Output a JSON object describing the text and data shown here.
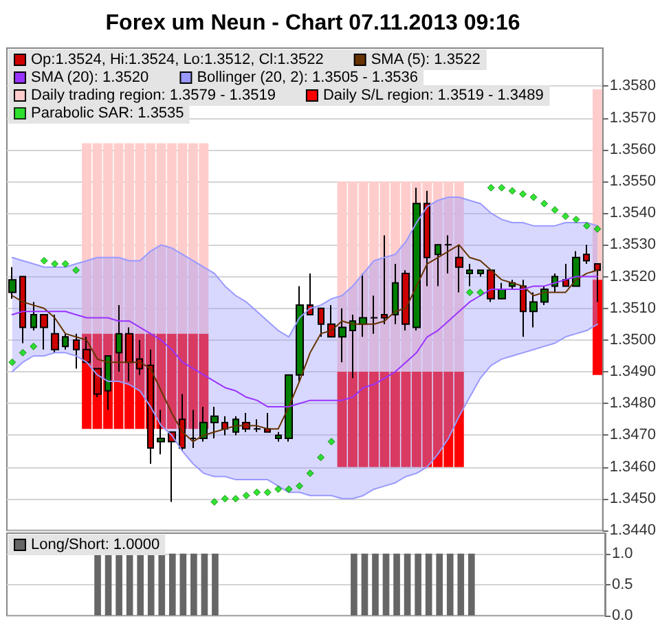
{
  "chart_data": [
    {
      "type": "candlestick",
      "title": "Forex um Neun - Chart 07.11.2013 09:16",
      "categories": [
        null,
        null,
        null,
        null,
        null,
        null,
        null,
        null,
        null,
        null,
        null,
        null,
        null,
        null,
        null,
        null,
        null,
        null,
        null,
        null,
        null,
        null,
        null,
        null,
        null,
        null,
        null,
        null,
        null,
        null,
        null,
        null,
        null,
        null,
        null,
        null,
        null,
        null,
        null,
        null,
        null,
        null,
        null,
        null,
        null,
        null,
        null,
        null,
        null,
        null,
        null,
        null,
        null,
        null,
        null,
        null
      ],
      "ylim": [
        1.344,
        1.3592
      ],
      "yticks": [
        {
          "value": 1.344,
          "label": "1.3440"
        },
        {
          "value": 1.345,
          "label": "1.3450"
        },
        {
          "value": 1.346,
          "label": "1.3460"
        },
        {
          "value": 1.347,
          "label": "1.3470"
        },
        {
          "value": 1.348,
          "label": "1.3480"
        },
        {
          "value": 1.349,
          "label": "1.3490"
        },
        {
          "value": 1.35,
          "label": "1.3500"
        },
        {
          "value": 1.351,
          "label": "1.3510"
        },
        {
          "value": 1.352,
          "label": "1.3520"
        },
        {
          "value": 1.353,
          "label": "1.3530"
        },
        {
          "value": 1.354,
          "label": "1.3540"
        },
        {
          "value": 1.355,
          "label": "1.3550"
        },
        {
          "value": 1.356,
          "label": "1.3560"
        },
        {
          "value": 1.357,
          "label": "1.3570"
        },
        {
          "value": 1.358,
          "label": "1.3580"
        }
      ],
      "grid": "y",
      "legend": "top left",
      "tick_labels": "y",
      "series": [
        {
          "name": "Op:1.3524, Hi:1.3524, Lo:1.3512, Cl:1.3522",
          "color": "#cc0000",
          "colors": [
            "#008000",
            "#cc0000",
            "#008000",
            "#cc0000",
            "#cc0000",
            "#008000",
            "#cc0000",
            "#cc0000",
            "#cc0000",
            "#008000",
            "#008000",
            "#cc0000",
            "#cc0000",
            "#cc0000",
            "#008000",
            "#cc0000",
            "#cc0000",
            "#000000",
            "#008000",
            "#008000",
            "#cc0000",
            "#008000",
            "#cc0000",
            "#000000",
            "#cc0000",
            "#008000",
            "#008000",
            "#008000",
            "#cc0000",
            "#cc0000",
            "#cc0000",
            "#008000",
            "#008000",
            "#008000",
            "#000000",
            "#cc0000",
            "#008000",
            "#cc0000",
            "#008000",
            "#cc0000",
            "#008000",
            "#000000",
            "#cc0000",
            "#008000",
            "#008000",
            "#cc0000",
            "#008000",
            "#008000",
            "#cc0000",
            "#008000",
            "#008000",
            "#008000",
            "#cc0000",
            "#008000",
            "#cc0000",
            "#cc0000"
          ],
          "ohlc": [
            [
              1.3515,
              1.3523,
              1.3513,
              1.3519
            ],
            [
              1.352,
              1.352,
              1.3499,
              1.3504
            ],
            [
              1.3504,
              1.3512,
              1.3503,
              1.3508
            ],
            [
              1.3508,
              1.3508,
              1.3497,
              1.3504
            ],
            [
              1.3502,
              1.3508,
              1.3496,
              1.3497
            ],
            [
              1.3498,
              1.3502,
              1.3497,
              1.3501
            ],
            [
              1.35,
              1.3502,
              1.3491,
              1.3497
            ],
            [
              1.3497,
              1.3501,
              1.3493,
              1.3493
            ],
            [
              1.3491,
              1.3491,
              1.3482,
              1.3483
            ],
            [
              1.3484,
              1.3495,
              1.3478,
              1.3495
            ],
            [
              1.3496,
              1.3511,
              1.349,
              1.3502
            ],
            [
              1.3502,
              1.3504,
              1.3487,
              1.3493
            ],
            [
              1.3494,
              1.35,
              1.3489,
              1.3491
            ],
            [
              1.3492,
              1.3497,
              1.3461,
              1.3466
            ],
            [
              1.3468,
              1.3478,
              1.3464,
              1.3469
            ],
            [
              1.3471,
              1.3471,
              1.3449,
              1.3468
            ],
            [
              1.3475,
              1.3483,
              1.3465,
              1.3466
            ],
            [
              1.3469,
              1.3478,
              1.3466,
              1.3469
            ],
            [
              1.3469,
              1.3479,
              1.3468,
              1.3474
            ],
            [
              1.3474,
              1.3479,
              1.3469,
              1.3476
            ],
            [
              1.3474,
              1.3476,
              1.347,
              1.3472
            ],
            [
              1.3471,
              1.3476,
              1.347,
              1.3475
            ],
            [
              1.3474,
              1.3477,
              1.3471,
              1.3472
            ],
            [
              1.3472,
              1.3475,
              1.3471,
              1.3472
            ],
            [
              1.3472,
              1.3477,
              1.3471,
              1.3471
            ],
            [
              1.3469,
              1.3471,
              1.3468,
              1.347
            ],
            [
              1.3469,
              1.3489,
              1.3468,
              1.3489
            ],
            [
              1.3489,
              1.3517,
              1.3487,
              1.3511
            ],
            [
              1.3511,
              1.3521,
              1.3508,
              1.3508
            ],
            [
              1.351,
              1.351,
              1.3501,
              1.3505
            ],
            [
              1.3505,
              1.3511,
              1.3501,
              1.3501
            ],
            [
              1.3501,
              1.351,
              1.3493,
              1.3504
            ],
            [
              1.3503,
              1.3508,
              1.3488,
              1.3506
            ],
            [
              1.3505,
              1.3521,
              1.3501,
              1.3507
            ],
            [
              1.3507,
              1.3514,
              1.3502,
              1.3507
            ],
            [
              1.3508,
              1.3533,
              1.3505,
              1.3507
            ],
            [
              1.3508,
              1.3524,
              1.3505,
              1.3518
            ],
            [
              1.3521,
              1.3522,
              1.3503,
              1.3505
            ],
            [
              1.3504,
              1.3548,
              1.3503,
              1.3543
            ],
            [
              1.3543,
              1.3547,
              1.3517,
              1.3526
            ],
            [
              1.3527,
              1.353,
              1.3517,
              1.353
            ],
            [
              1.353,
              1.3533,
              1.3521,
              1.353
            ],
            [
              1.3526,
              1.353,
              1.3515,
              1.3523
            ],
            [
              1.3521,
              1.3524,
              1.3517,
              1.3522
            ],
            [
              1.3521,
              1.3522,
              1.352,
              1.3522
            ],
            [
              1.3522,
              1.3522,
              1.3512,
              1.3513
            ],
            [
              1.3513,
              1.3518,
              1.3513,
              1.3516
            ],
            [
              1.3517,
              1.3519,
              1.3516,
              1.3518
            ],
            [
              1.3517,
              1.3519,
              1.3501,
              1.3509
            ],
            [
              1.3509,
              1.3515,
              1.3504,
              1.3512
            ],
            [
              1.3512,
              1.3517,
              1.3511,
              1.3516
            ],
            [
              1.3517,
              1.3521,
              1.3515,
              1.352
            ],
            [
              1.3519,
              1.3524,
              1.3517,
              1.3517
            ],
            [
              1.3517,
              1.3528,
              1.3517,
              1.3526
            ],
            [
              1.3527,
              1.353,
              1.3524,
              1.3525
            ],
            [
              1.3524,
              1.3524,
              1.3512,
              1.3522
            ]
          ]
        },
        {
          "name": "SMA (5): 1.3522",
          "type": "line",
          "color": "#663300",
          "line_style": "solid",
          "values": [
            1.3514,
            1.3512,
            1.3511,
            1.351,
            1.3507,
            1.3502,
            1.3501,
            1.35,
            1.3494,
            1.3493,
            1.3493,
            1.3493,
            1.3493,
            1.3491,
            1.3484,
            1.3477,
            1.3471,
            1.3468,
            1.347,
            1.3471,
            1.3472,
            1.3473,
            1.3473,
            1.3473,
            1.3472,
            1.3472,
            1.3479,
            1.3487,
            1.3496,
            1.3502,
            1.3503,
            1.3506,
            1.3505,
            1.3505,
            1.3505,
            1.3506,
            1.3509,
            1.351,
            1.3517,
            1.3524,
            1.3526,
            1.3528,
            1.353,
            1.3526,
            1.3525,
            1.3522,
            1.3519,
            1.3518,
            1.3517,
            1.3514,
            1.3515,
            1.3515,
            1.3515,
            1.3519,
            1.3521,
            1.3522
          ]
        },
        {
          "name": "SMA (20): 1.3520",
          "type": "line",
          "color": "#9933ff",
          "line_style": "solid",
          "values": [
            1.3508,
            1.3509,
            1.3509,
            1.3509,
            1.3509,
            1.3509,
            1.3508,
            1.3507,
            1.3507,
            1.3507,
            1.3506,
            1.3506,
            1.3504,
            1.3502,
            1.35,
            1.3497,
            1.3493,
            1.3491,
            1.3489,
            1.3487,
            1.3485,
            1.3484,
            1.3482,
            1.3481,
            1.3479,
            1.3479,
            1.3479,
            1.348,
            1.3481,
            1.3481,
            1.3481,
            1.3481,
            1.3482,
            1.3485,
            1.3486,
            1.3488,
            1.349,
            1.3493,
            1.3496,
            1.3501,
            1.3503,
            1.3506,
            1.3509,
            1.3512,
            1.3514,
            1.3516,
            1.3516,
            1.3516,
            1.3516,
            1.3517,
            1.3517,
            1.3518,
            1.3519,
            1.352,
            1.352,
            1.352
          ],
          "upper": [
            1.3526,
            1.3525,
            1.3524,
            1.3523,
            1.3523,
            1.3523,
            1.3524,
            1.3525,
            1.3526,
            1.3526,
            1.3526,
            1.3525,
            1.3525,
            1.3528,
            1.353,
            1.3529,
            1.3527,
            1.3525,
            1.3523,
            1.3521,
            1.3517,
            1.3514,
            1.3512,
            1.3509,
            1.3506,
            1.3503,
            1.3501,
            1.3507,
            1.351,
            1.3511,
            1.3513,
            1.3514,
            1.3517,
            1.3521,
            1.3525,
            1.3526,
            1.3527,
            1.3531,
            1.3537,
            1.3542,
            1.3544,
            1.3545,
            1.3545,
            1.3544,
            1.3543,
            1.354,
            1.3538,
            1.3537,
            1.3537,
            1.3536,
            1.3536,
            1.3536,
            1.3537,
            1.3537,
            1.3537,
            1.3536
          ],
          "lower": [
            1.349,
            1.3493,
            1.3495,
            1.3495,
            1.3496,
            1.3496,
            1.3495,
            1.3493,
            1.3489,
            1.3487,
            1.3487,
            1.3486,
            1.3484,
            1.3479,
            1.3473,
            1.347,
            1.3465,
            1.3461,
            1.3458,
            1.3457,
            1.3457,
            1.3456,
            1.3456,
            1.3456,
            1.3456,
            1.3454,
            1.3452,
            1.3452,
            1.3451,
            1.3451,
            1.3451,
            1.345,
            1.345,
            1.3451,
            1.3453,
            1.3454,
            1.3455,
            1.3457,
            1.3458,
            1.346,
            1.3464,
            1.3469,
            1.3476,
            1.3482,
            1.3488,
            1.3492,
            1.3494,
            1.3495,
            1.3496,
            1.3497,
            1.3498,
            1.3499,
            1.3501,
            1.3502,
            1.3503,
            1.3505
          ]
        },
        {
          "name": "Bollinger (20, 2): 1.3505 - 1.3536",
          "type": "line",
          "color": "#9999ff",
          "line_style": "solid",
          "values": [
            1.3526,
            1.3525,
            1.3524,
            1.3523,
            1.3523,
            1.3523,
            1.3524,
            1.3525,
            1.3526,
            1.3526,
            1.3526,
            1.3525,
            1.3525,
            1.3528,
            1.353,
            1.3529,
            1.3527,
            1.3525,
            1.3523,
            1.3521,
            1.3517,
            1.3514,
            1.3512,
            1.3509,
            1.3506,
            1.3503,
            1.3501,
            1.3507,
            1.351,
            1.3511,
            1.3513,
            1.3514,
            1.3517,
            1.3521,
            1.3525,
            1.3526,
            1.3527,
            1.3531,
            1.3537,
            1.3542,
            1.3544,
            1.3545,
            1.3545,
            1.3544,
            1.3543,
            1.354,
            1.3538,
            1.3537,
            1.3537,
            1.3536,
            1.3536,
            1.3536,
            1.3537,
            1.3537,
            1.3537,
            1.3536
          ]
        },
        {
          "type": "line",
          "color": "#9999ff",
          "line_style": "solid",
          "values": [
            1.349,
            1.3493,
            1.3495,
            1.3495,
            1.3496,
            1.3496,
            1.3495,
            1.3493,
            1.3489,
            1.3487,
            1.3487,
            1.3486,
            1.3484,
            1.3479,
            1.3473,
            1.347,
            1.3465,
            1.3461,
            1.3458,
            1.3457,
            1.3457,
            1.3456,
            1.3456,
            1.3456,
            1.3456,
            1.3454,
            1.3452,
            1.3452,
            1.3451,
            1.3451,
            1.3451,
            1.345,
            1.345,
            1.3451,
            1.3453,
            1.3454,
            1.3455,
            1.3457,
            1.3458,
            1.346,
            1.3464,
            1.3469,
            1.3476,
            1.3482,
            1.3488,
            1.3492,
            1.3494,
            1.3495,
            1.3496,
            1.3497,
            1.3498,
            1.3499,
            1.3501,
            1.3502,
            1.3503,
            1.3505
          ]
        },
        {
          "name": "Daily trading region: 1.3579 - 1.3519",
          "type": "bar",
          "color": "#ffcccc",
          "base": [
            null,
            null,
            null,
            null,
            null,
            null,
            null,
            1.3502,
            1.3502,
            1.3502,
            1.3502,
            1.3502,
            1.3502,
            1.3502,
            1.3502,
            1.3502,
            1.3502,
            1.3502,
            1.3502,
            null,
            null,
            null,
            null,
            null,
            null,
            null,
            null,
            null,
            null,
            null,
            null,
            1.349,
            1.349,
            1.349,
            1.349,
            1.349,
            1.349,
            1.349,
            1.349,
            1.349,
            1.349,
            1.349,
            1.349,
            null,
            null,
            null,
            null,
            null,
            null,
            null,
            null,
            null,
            null,
            null,
            null,
            1.3519
          ],
          "values": [
            null,
            null,
            null,
            null,
            null,
            null,
            null,
            0.006,
            0.006,
            0.006,
            0.006,
            0.006,
            0.006,
            0.006,
            0.006,
            0.006,
            0.006,
            0.006,
            0.006,
            null,
            null,
            null,
            null,
            null,
            null,
            null,
            null,
            null,
            null,
            null,
            null,
            0.006,
            0.006,
            0.006,
            0.006,
            0.006,
            0.006,
            0.006,
            0.006,
            0.006,
            0.006,
            0.006,
            0.006,
            null,
            null,
            null,
            null,
            null,
            null,
            null,
            null,
            null,
            null,
            null,
            null,
            0.006
          ]
        },
        {
          "name": "Daily S/L region: 1.3519 - 1.3489",
          "type": "bar",
          "color": "#ff0000",
          "base": [
            null,
            null,
            null,
            null,
            null,
            null,
            null,
            1.3472,
            1.3472,
            1.3472,
            1.3472,
            1.3472,
            1.3472,
            1.3472,
            1.3472,
            1.3472,
            1.3472,
            1.3472,
            1.3472,
            null,
            null,
            null,
            null,
            null,
            null,
            null,
            null,
            null,
            null,
            null,
            null,
            1.346,
            1.346,
            1.346,
            1.346,
            1.346,
            1.346,
            1.346,
            1.346,
            1.346,
            1.346,
            1.346,
            1.346,
            null,
            null,
            null,
            null,
            null,
            null,
            null,
            null,
            null,
            null,
            null,
            null,
            1.3489
          ],
          "values": [
            null,
            null,
            null,
            null,
            null,
            null,
            null,
            0.003,
            0.003,
            0.003,
            0.003,
            0.003,
            0.003,
            0.003,
            0.003,
            0.003,
            0.003,
            0.003,
            0.003,
            null,
            null,
            null,
            null,
            null,
            null,
            null,
            null,
            null,
            null,
            null,
            null,
            0.003,
            0.003,
            0.003,
            0.003,
            0.003,
            0.003,
            0.003,
            0.003,
            0.003,
            0.003,
            0.003,
            0.003,
            null,
            null,
            null,
            null,
            null,
            null,
            null,
            null,
            null,
            null,
            null,
            null,
            0.003
          ]
        },
        {
          "name": "Parabolic SAR: 1.3535",
          "type": "scatter",
          "color": "#00dd00",
          "marker": "diamond",
          "values": [
            1.3493,
            1.3496,
            1.3498,
            1.3525,
            1.3524,
            1.3524,
            1.3522,
            null,
            null,
            null,
            null,
            null,
            null,
            null,
            null,
            null,
            null,
            null,
            null,
            1.3449,
            1.345,
            1.345,
            1.3451,
            1.3452,
            1.3452,
            1.3453,
            1.3453,
            1.3454,
            1.3458,
            1.3463,
            1.3468,
            null,
            null,
            null,
            null,
            null,
            null,
            null,
            null,
            null,
            null,
            null,
            null,
            1.3515,
            1.3515,
            1.3548,
            1.3548,
            1.3547,
            1.3546,
            1.3545,
            1.3543,
            1.3541,
            1.3539,
            1.3538,
            1.3536,
            1.3535
          ]
        }
      ]
    },
    {
      "type": "bar",
      "categories": [
        null,
        null,
        null,
        null,
        null,
        null,
        null,
        null,
        null,
        null,
        null,
        null,
        null,
        null,
        null,
        null,
        null,
        null,
        null,
        null,
        null,
        null,
        null,
        null,
        null,
        null,
        null,
        null,
        null,
        null,
        null,
        null,
        null,
        null,
        null,
        null,
        null,
        null,
        null,
        null,
        null,
        null,
        null,
        null,
        null,
        null,
        null,
        null,
        null,
        null,
        null,
        null,
        null,
        null,
        null,
        null
      ],
      "ylim": [
        0,
        1.33
      ],
      "yticks": [
        {
          "value": 0,
          "label": "0.0"
        },
        0.5,
        {
          "value": 1,
          "label": "1.0"
        }
      ],
      "grid": "y",
      "legend": "top left",
      "tick_labels": "y",
      "series": [
        {
          "name": "Long/Short: 1.0000",
          "color": "#666666",
          "values": [
            0,
            0,
            0,
            0,
            0,
            0,
            0,
            0,
            1,
            1,
            1,
            1,
            1,
            1,
            1,
            1,
            1,
            1,
            1,
            1,
            0,
            0,
            0,
            0,
            0,
            0,
            0,
            0,
            0,
            0,
            0,
            0,
            1,
            1,
            1,
            1,
            1,
            1,
            1,
            1,
            1,
            1,
            1,
            1,
            0,
            0,
            0,
            0,
            0,
            0,
            0,
            0,
            0,
            0,
            0,
            0
          ]
        }
      ]
    }
  ]
}
